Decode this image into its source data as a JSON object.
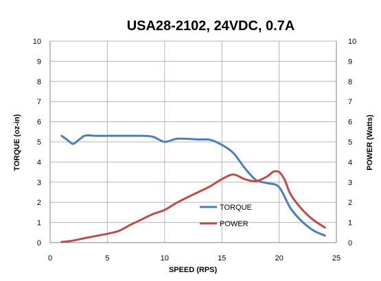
{
  "chart_data": {
    "type": "line",
    "title": "USA28-2102, 24VDC, 0.7A",
    "xlabel": "SPEED (RPS)",
    "ylabel": "TORQUE (oz-in)",
    "y2label": "POWER (Watts)",
    "xlim": [
      0,
      25
    ],
    "ylim": [
      0,
      10
    ],
    "y2lim": [
      0,
      10
    ],
    "x_ticks": [
      "0",
      "5",
      "10",
      "15",
      "20",
      "25"
    ],
    "y_ticks": [
      "0",
      "1",
      "2",
      "3",
      "4",
      "5",
      "6",
      "7",
      "8",
      "9",
      "10"
    ],
    "y2_ticks": [
      "0",
      "1",
      "2",
      "3",
      "4",
      "5",
      "6",
      "7",
      "8",
      "9",
      "10"
    ],
    "grid": true,
    "legend_position": "bottom-center",
    "series": [
      {
        "name": "TORQUE",
        "color": "#4a7ebb",
        "axis": "left",
        "x": [
          1,
          1.5,
          2,
          2.5,
          3,
          3.5,
          4,
          5,
          6,
          7,
          8,
          9,
          10,
          11,
          12,
          13,
          14,
          15,
          16,
          17,
          18,
          19,
          20,
          21,
          22,
          23,
          24
        ],
        "y": [
          5.3,
          5.1,
          4.9,
          5.1,
          5.3,
          5.32,
          5.3,
          5.3,
          5.3,
          5.3,
          5.3,
          5.25,
          5.0,
          5.15,
          5.15,
          5.12,
          5.1,
          4.85,
          4.45,
          3.7,
          3.1,
          2.95,
          2.75,
          1.7,
          1.05,
          0.6,
          0.35
        ]
      },
      {
        "name": "POWER",
        "color": "#be4b48",
        "axis": "right",
        "x": [
          1,
          2,
          3,
          4,
          5,
          6,
          7,
          8,
          9,
          10,
          11,
          12,
          13,
          14,
          15,
          16,
          17,
          18,
          19,
          19.5,
          20,
          20.5,
          21,
          22,
          23,
          24
        ],
        "y": [
          0.03,
          0.1,
          0.22,
          0.33,
          0.44,
          0.58,
          0.88,
          1.15,
          1.42,
          1.62,
          1.96,
          2.25,
          2.52,
          2.8,
          3.15,
          3.38,
          3.15,
          3.05,
          3.3,
          3.52,
          3.5,
          3.1,
          2.4,
          1.65,
          1.12,
          0.75
        ]
      }
    ]
  }
}
